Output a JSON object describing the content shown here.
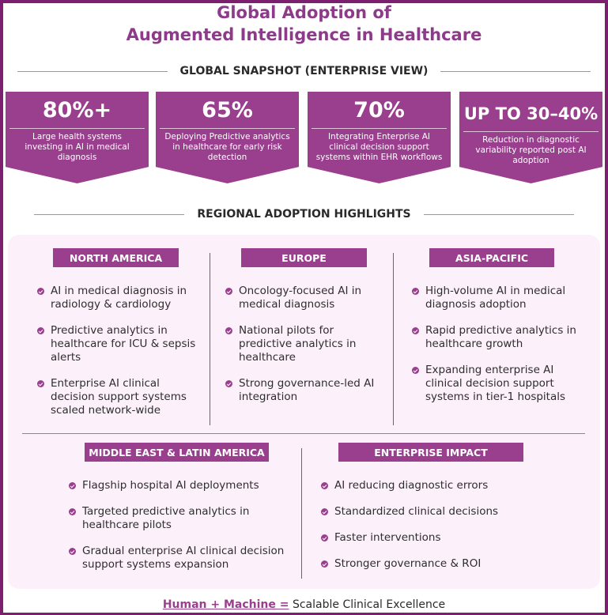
{
  "title": {
    "line1": "Global Adoption of",
    "line2": "Augmented Intelligence in Healthcare"
  },
  "snapshot": {
    "heading": "GLOBAL SNAPSHOT (ENTERPRISE VIEW)",
    "cards": [
      {
        "value": "80%+",
        "desc": "Large health systems investing in AI in medical diagnosis"
      },
      {
        "value": "65%",
        "desc": "Deploying Predictive analytics in healthcare for early risk detection"
      },
      {
        "value": "70%",
        "desc": "Integrating Enterprise AI clinical decision support systems within EHR workflows"
      },
      {
        "value": "UP TO 30–40%",
        "desc": "Reduction in diagnostic variability reported post AI adoption"
      }
    ]
  },
  "regional": {
    "heading": "REGIONAL ADOPTION HIGHLIGHTS",
    "regions": [
      {
        "name": "NORTH AMERICA",
        "items": [
          "AI in medical diagnosis in radiology & cardiology",
          "Predictive analytics in healthcare for ICU & sepsis alerts",
          "Enterprise AI clinical decision support systems scaled network-wide"
        ]
      },
      {
        "name": "EUROPE",
        "items": [
          "Oncology-focused AI in medical diagnosis",
          "National pilots for predictive analytics in healthcare",
          "Strong governance-led AI integration"
        ]
      },
      {
        "name": "ASIA-PACIFIC",
        "items": [
          "High-volume AI in medical diagnosis adoption",
          "Rapid predictive analytics in healthcare growth",
          "Expanding enterprise AI clinical decision support systems in tier-1 hospitals"
        ]
      },
      {
        "name": "MIDDLE EAST & LATIN AMERICA",
        "items": [
          "Flagship hospital AI deployments",
          "Targeted predictive analytics in healthcare pilots",
          "Gradual enterprise AI clinical decision support systems expansion"
        ]
      },
      {
        "name": "ENTERPRISE IMPACT",
        "items": [
          "AI reducing diagnostic errors",
          "Standardized clinical decisions",
          "Faster interventions",
          "Stronger governance & ROI"
        ]
      }
    ]
  },
  "footer": {
    "emphasis": "Human + Machine =",
    "rest": "Scalable Clinical Excellence"
  },
  "colors": {
    "accent": "#9a3e8e",
    "border": "#7b1f6e",
    "panel": "#fcf0fb"
  }
}
